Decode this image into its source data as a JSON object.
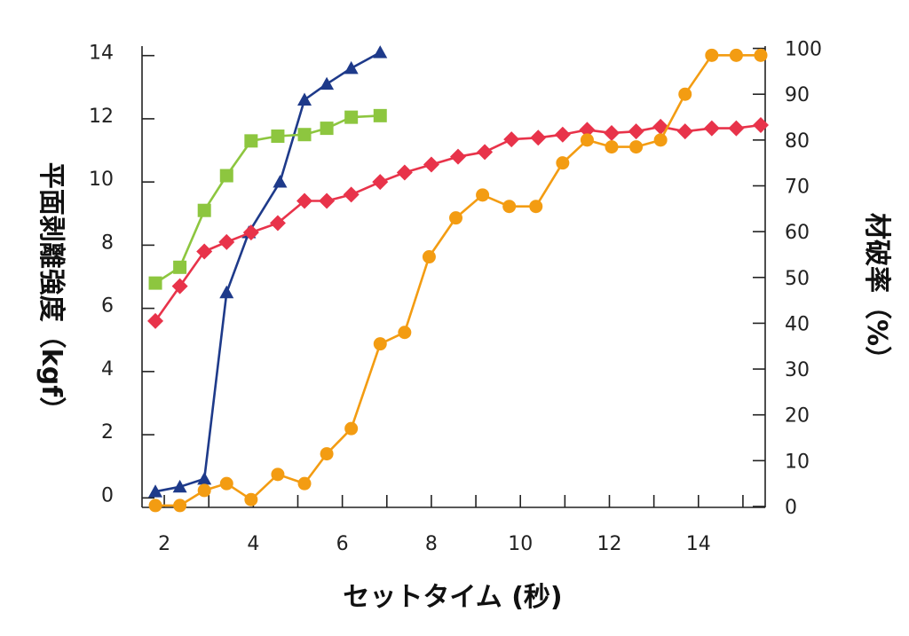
{
  "chart_data": {
    "type": "line",
    "xlabel": "セットタイム (秒)",
    "ylabel_left": "平面剥離強度（kgf）",
    "ylabel_right": "材破率（%）",
    "xlim": [
      1.5,
      15.5
    ],
    "ylim_left": [
      -0.3,
      14.3
    ],
    "ylim_right": [
      -0.2,
      100.5
    ],
    "x_ticks": [
      2,
      4,
      6,
      8,
      10,
      12,
      14
    ],
    "y_left_ticks": [
      0,
      2,
      4,
      6,
      8,
      10,
      12,
      14
    ],
    "y_right_ticks": [
      0,
      10,
      20,
      30,
      40,
      50,
      60,
      70,
      80,
      90,
      100
    ],
    "grid": false,
    "series": [
      {
        "axis": "left",
        "color": "#1e3a8a",
        "marker": "triangle",
        "x": [
          1.8,
          2.35,
          2.9,
          3.4,
          3.9,
          4.6,
          5.15,
          5.65,
          6.2,
          6.85
        ],
        "y": [
          0.2,
          0.35,
          0.6,
          6.5,
          8.4,
          10.0,
          12.6,
          13.1,
          13.6,
          14.1
        ]
      },
      {
        "axis": "left",
        "color": "#8dc63f",
        "marker": "square",
        "x": [
          1.8,
          2.35,
          2.9,
          3.4,
          3.95,
          4.55,
          5.15,
          5.65,
          6.2,
          6.85
        ],
        "y": [
          6.8,
          7.3,
          9.1,
          10.2,
          11.3,
          11.45,
          11.5,
          11.7,
          12.05,
          12.1
        ]
      },
      {
        "axis": "left",
        "color": "#e8334a",
        "marker": "diamond",
        "x": [
          1.8,
          2.35,
          2.9,
          3.4,
          3.95,
          4.55,
          5.15,
          5.65,
          6.2,
          6.85,
          7.4,
          8.0,
          8.6,
          9.2,
          9.8,
          10.4,
          10.95,
          11.5,
          12.05,
          12.6,
          13.15,
          13.7,
          14.3,
          14.85,
          15.4
        ],
        "y": [
          5.6,
          6.7,
          7.8,
          8.1,
          8.4,
          8.7,
          9.4,
          9.4,
          9.6,
          10.0,
          10.3,
          10.55,
          10.8,
          10.95,
          11.35,
          11.4,
          11.5,
          11.65,
          11.55,
          11.6,
          11.75,
          11.6,
          11.7,
          11.7,
          11.8
        ]
      },
      {
        "axis": "right",
        "color": "#f39c12",
        "marker": "circle",
        "x": [
          1.8,
          2.35,
          2.9,
          3.4,
          3.95,
          4.55,
          5.15,
          5.65,
          6.2,
          6.85,
          7.4,
          7.95,
          8.55,
          9.15,
          9.75,
          10.35,
          10.95,
          11.5,
          12.05,
          12.6,
          13.15,
          13.7,
          14.3,
          14.85,
          15.4
        ],
        "y": [
          0.2,
          0.2,
          3.5,
          5.0,
          1.5,
          7.0,
          5.0,
          11.5,
          17.0,
          35.5,
          38.0,
          54.5,
          63.0,
          68.0,
          65.5,
          65.5,
          75.0,
          80.0,
          78.5,
          78.5,
          80.0,
          90.0,
          98.5,
          98.5,
          98.5
        ]
      }
    ]
  }
}
